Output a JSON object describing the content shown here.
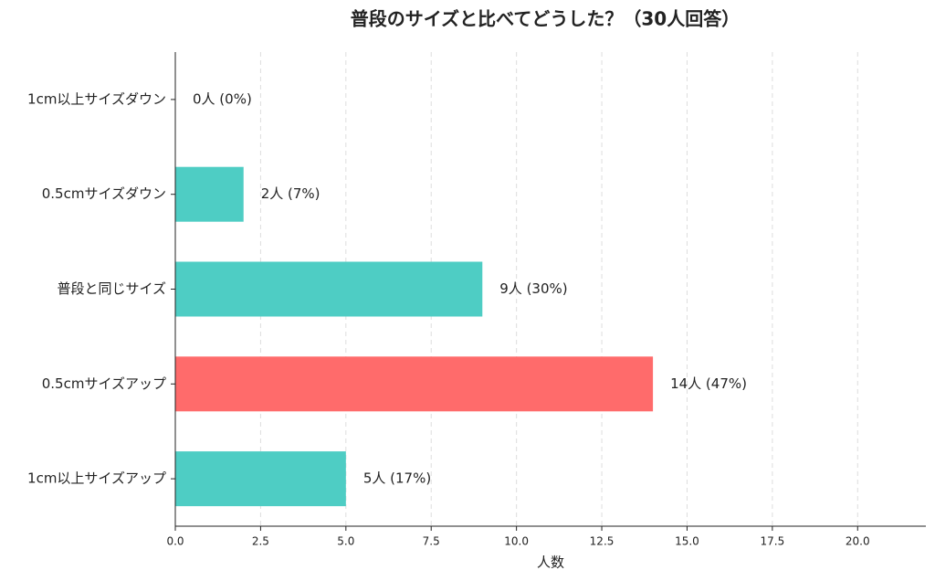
{
  "chart_data": {
    "type": "barh",
    "title": "普段のサイズと比べてどうした？（30人回答）",
    "categories": [
      "1cm以上サイズダウン",
      "0.5cmサイズダウン",
      "普段と同じサイズ",
      "0.5cmサイズアップ",
      "1cm以上サイズアップ"
    ],
    "values": [
      0,
      2,
      9,
      14,
      5
    ],
    "value_labels": [
      "0人 (0%)",
      "2人 (7%)",
      "9人 (30%)",
      "14人 (47%)",
      "5人 (17%)"
    ],
    "colors": [
      "#4ecdc4",
      "#4ecdc4",
      "#4ecdc4",
      "#ff6b6b",
      "#4ecdc4"
    ],
    "xlabel": "人数",
    "xlim": [
      0,
      22
    ],
    "xticks": [
      {
        "value": 0,
        "label": "0.0"
      },
      2.5,
      {
        "value": 5,
        "label": "5.0"
      },
      7.5,
      {
        "value": 10,
        "label": "10.0"
      },
      12.5,
      {
        "value": 15,
        "label": "15.0"
      },
      17.5,
      {
        "value": 20,
        "label": "20.0"
      }
    ],
    "grid": true
  }
}
